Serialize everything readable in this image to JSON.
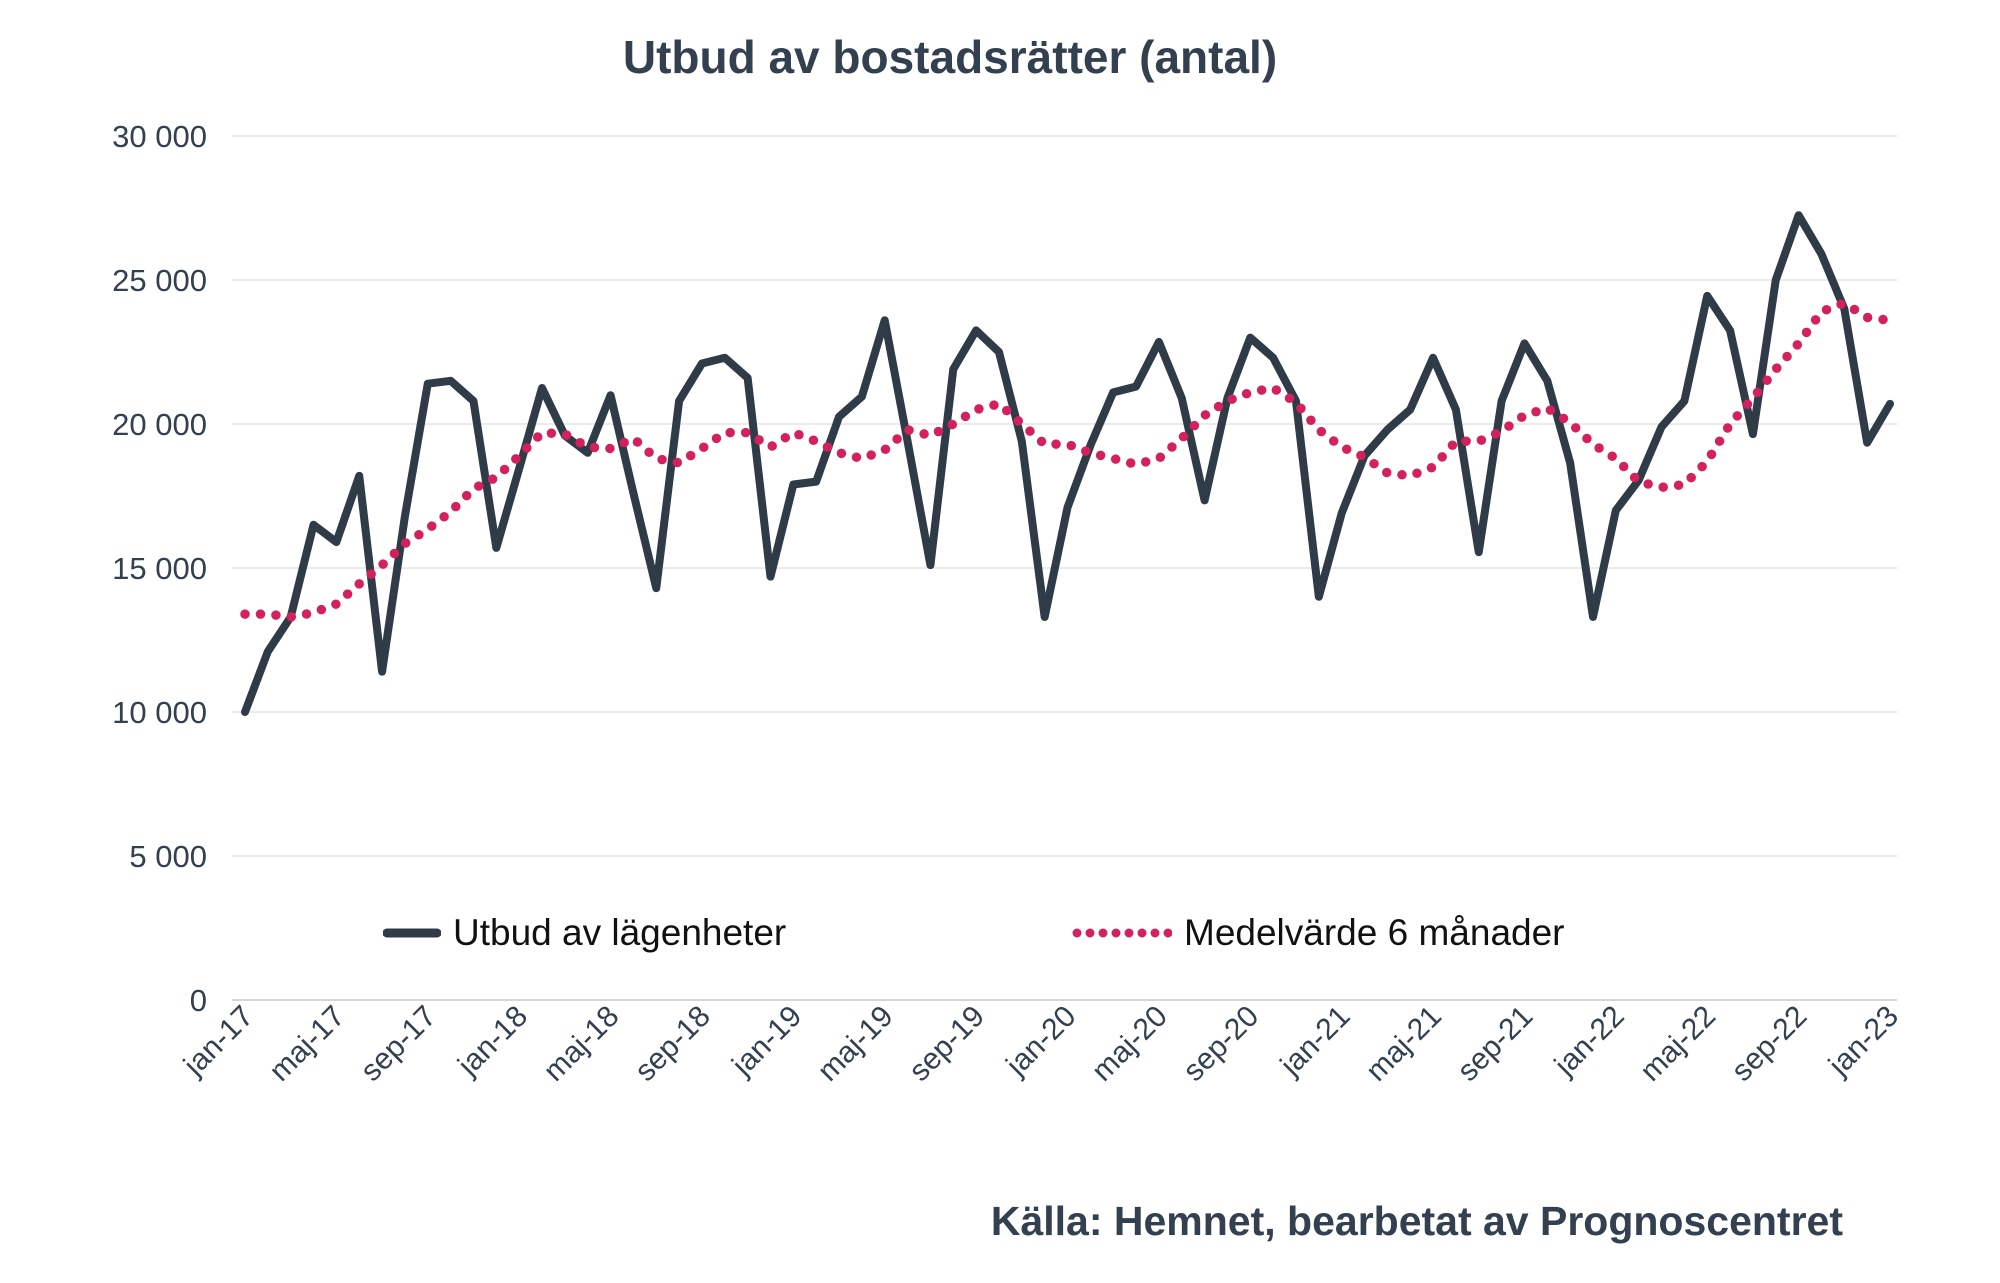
{
  "title": "Utbud av bostadsrätter (antal)",
  "source": "Källa: Hemnet, bearbetat av Prognoscentret",
  "colors": {
    "line": "#2f3b47",
    "average": "#d4215e",
    "grid": "#ebebeb",
    "zero_grid": "#d6d6d6",
    "axis_text": "#33404f",
    "legend_text": "#111111",
    "background": "#ffffff"
  },
  "legend": {
    "items": [
      {
        "label": "Utbud av lägenheter",
        "swatch": "solid-line"
      },
      {
        "label": "Medelvärde 6 månader",
        "swatch": "dotted-line"
      }
    ]
  },
  "chart_data": {
    "type": "line",
    "title": "Utbud av bostadsrätter (antal)",
    "xlabel": "",
    "ylabel": "",
    "ylim": [
      0,
      30000
    ],
    "y_ticks": [
      0,
      5000,
      10000,
      15000,
      20000,
      25000,
      30000
    ],
    "y_tick_labels": [
      "0",
      "5 000",
      "10 000",
      "15 000",
      "20 000",
      "25 000",
      "30 000"
    ],
    "grid": true,
    "legend_position": "bottom",
    "x_tick_every": 4,
    "x": [
      "jan-17",
      "feb-17",
      "mar-17",
      "apr-17",
      "maj-17",
      "jun-17",
      "jul-17",
      "aug-17",
      "sep-17",
      "okt-17",
      "nov-17",
      "dec-17",
      "jan-18",
      "feb-18",
      "mar-18",
      "apr-18",
      "maj-18",
      "jun-18",
      "jul-18",
      "aug-18",
      "sep-18",
      "okt-18",
      "nov-18",
      "dec-18",
      "jan-19",
      "feb-19",
      "mar-19",
      "apr-19",
      "maj-19",
      "jun-19",
      "jul-19",
      "aug-19",
      "sep-19",
      "okt-19",
      "nov-19",
      "dec-19",
      "jan-20",
      "feb-20",
      "mar-20",
      "apr-20",
      "maj-20",
      "jun-20",
      "jul-20",
      "aug-20",
      "sep-20",
      "okt-20",
      "nov-20",
      "dec-20",
      "jan-21",
      "feb-21",
      "mar-21",
      "apr-21",
      "maj-21",
      "jun-21",
      "jul-21",
      "aug-21",
      "sep-21",
      "okt-21",
      "nov-21",
      "dec-21",
      "jan-22",
      "feb-22",
      "mar-22",
      "apr-22",
      "maj-22",
      "jun-22",
      "jul-22",
      "aug-22",
      "sep-22",
      "okt-22",
      "nov-22",
      "dec-22",
      "jan-23"
    ],
    "series": [
      {
        "name": "Utbud av lägenheter",
        "style": "solid",
        "color": "#2f3b47",
        "values": [
          10000,
          12100,
          13300,
          16500,
          15900,
          18200,
          11400,
          16800,
          21400,
          21500,
          20800,
          15700,
          18450,
          21250,
          19600,
          19000,
          21000,
          17600,
          14300,
          20800,
          22100,
          22300,
          21600,
          14700,
          17900,
          18000,
          20250,
          20950,
          23600,
          19400,
          15100,
          21900,
          23250,
          22500,
          19400,
          13300,
          17100,
          19250,
          21100,
          21300,
          22850,
          20900,
          17350,
          20900,
          23000,
          22300,
          20800,
          14000,
          16900,
          18900,
          19800,
          20500,
          22300,
          20500,
          15550,
          20800,
          22800,
          21500,
          18650,
          13300,
          17000,
          18050,
          19900,
          20800,
          24450,
          23250,
          19650,
          25000,
          27250,
          25900,
          24000,
          19350,
          20700
        ]
      },
      {
        "name": "Medelvärde 6 månader",
        "style": "dotted",
        "color": "#d4215e",
        "values": [
          13400,
          13400,
          13300,
          13450,
          13750,
          14450,
          15100,
          15850,
          16350,
          16950,
          17750,
          18150,
          18900,
          19700,
          19650,
          19200,
          19150,
          19500,
          18800,
          18650,
          19150,
          19700,
          19700,
          19200,
          19700,
          19400,
          19000,
          18800,
          19100,
          19800,
          19600,
          20000,
          20500,
          20700,
          20000,
          19300,
          19300,
          19000,
          18800,
          18600,
          18800,
          19500,
          20300,
          20800,
          21100,
          21250,
          20750,
          19800,
          19200,
          18850,
          18300,
          18200,
          18500,
          19400,
          19400,
          19750,
          20300,
          20550,
          20050,
          19300,
          18800,
          18000,
          17800,
          17900,
          18700,
          20000,
          20900,
          21900,
          22800,
          23900,
          24200,
          23700,
          23600
        ]
      }
    ]
  }
}
